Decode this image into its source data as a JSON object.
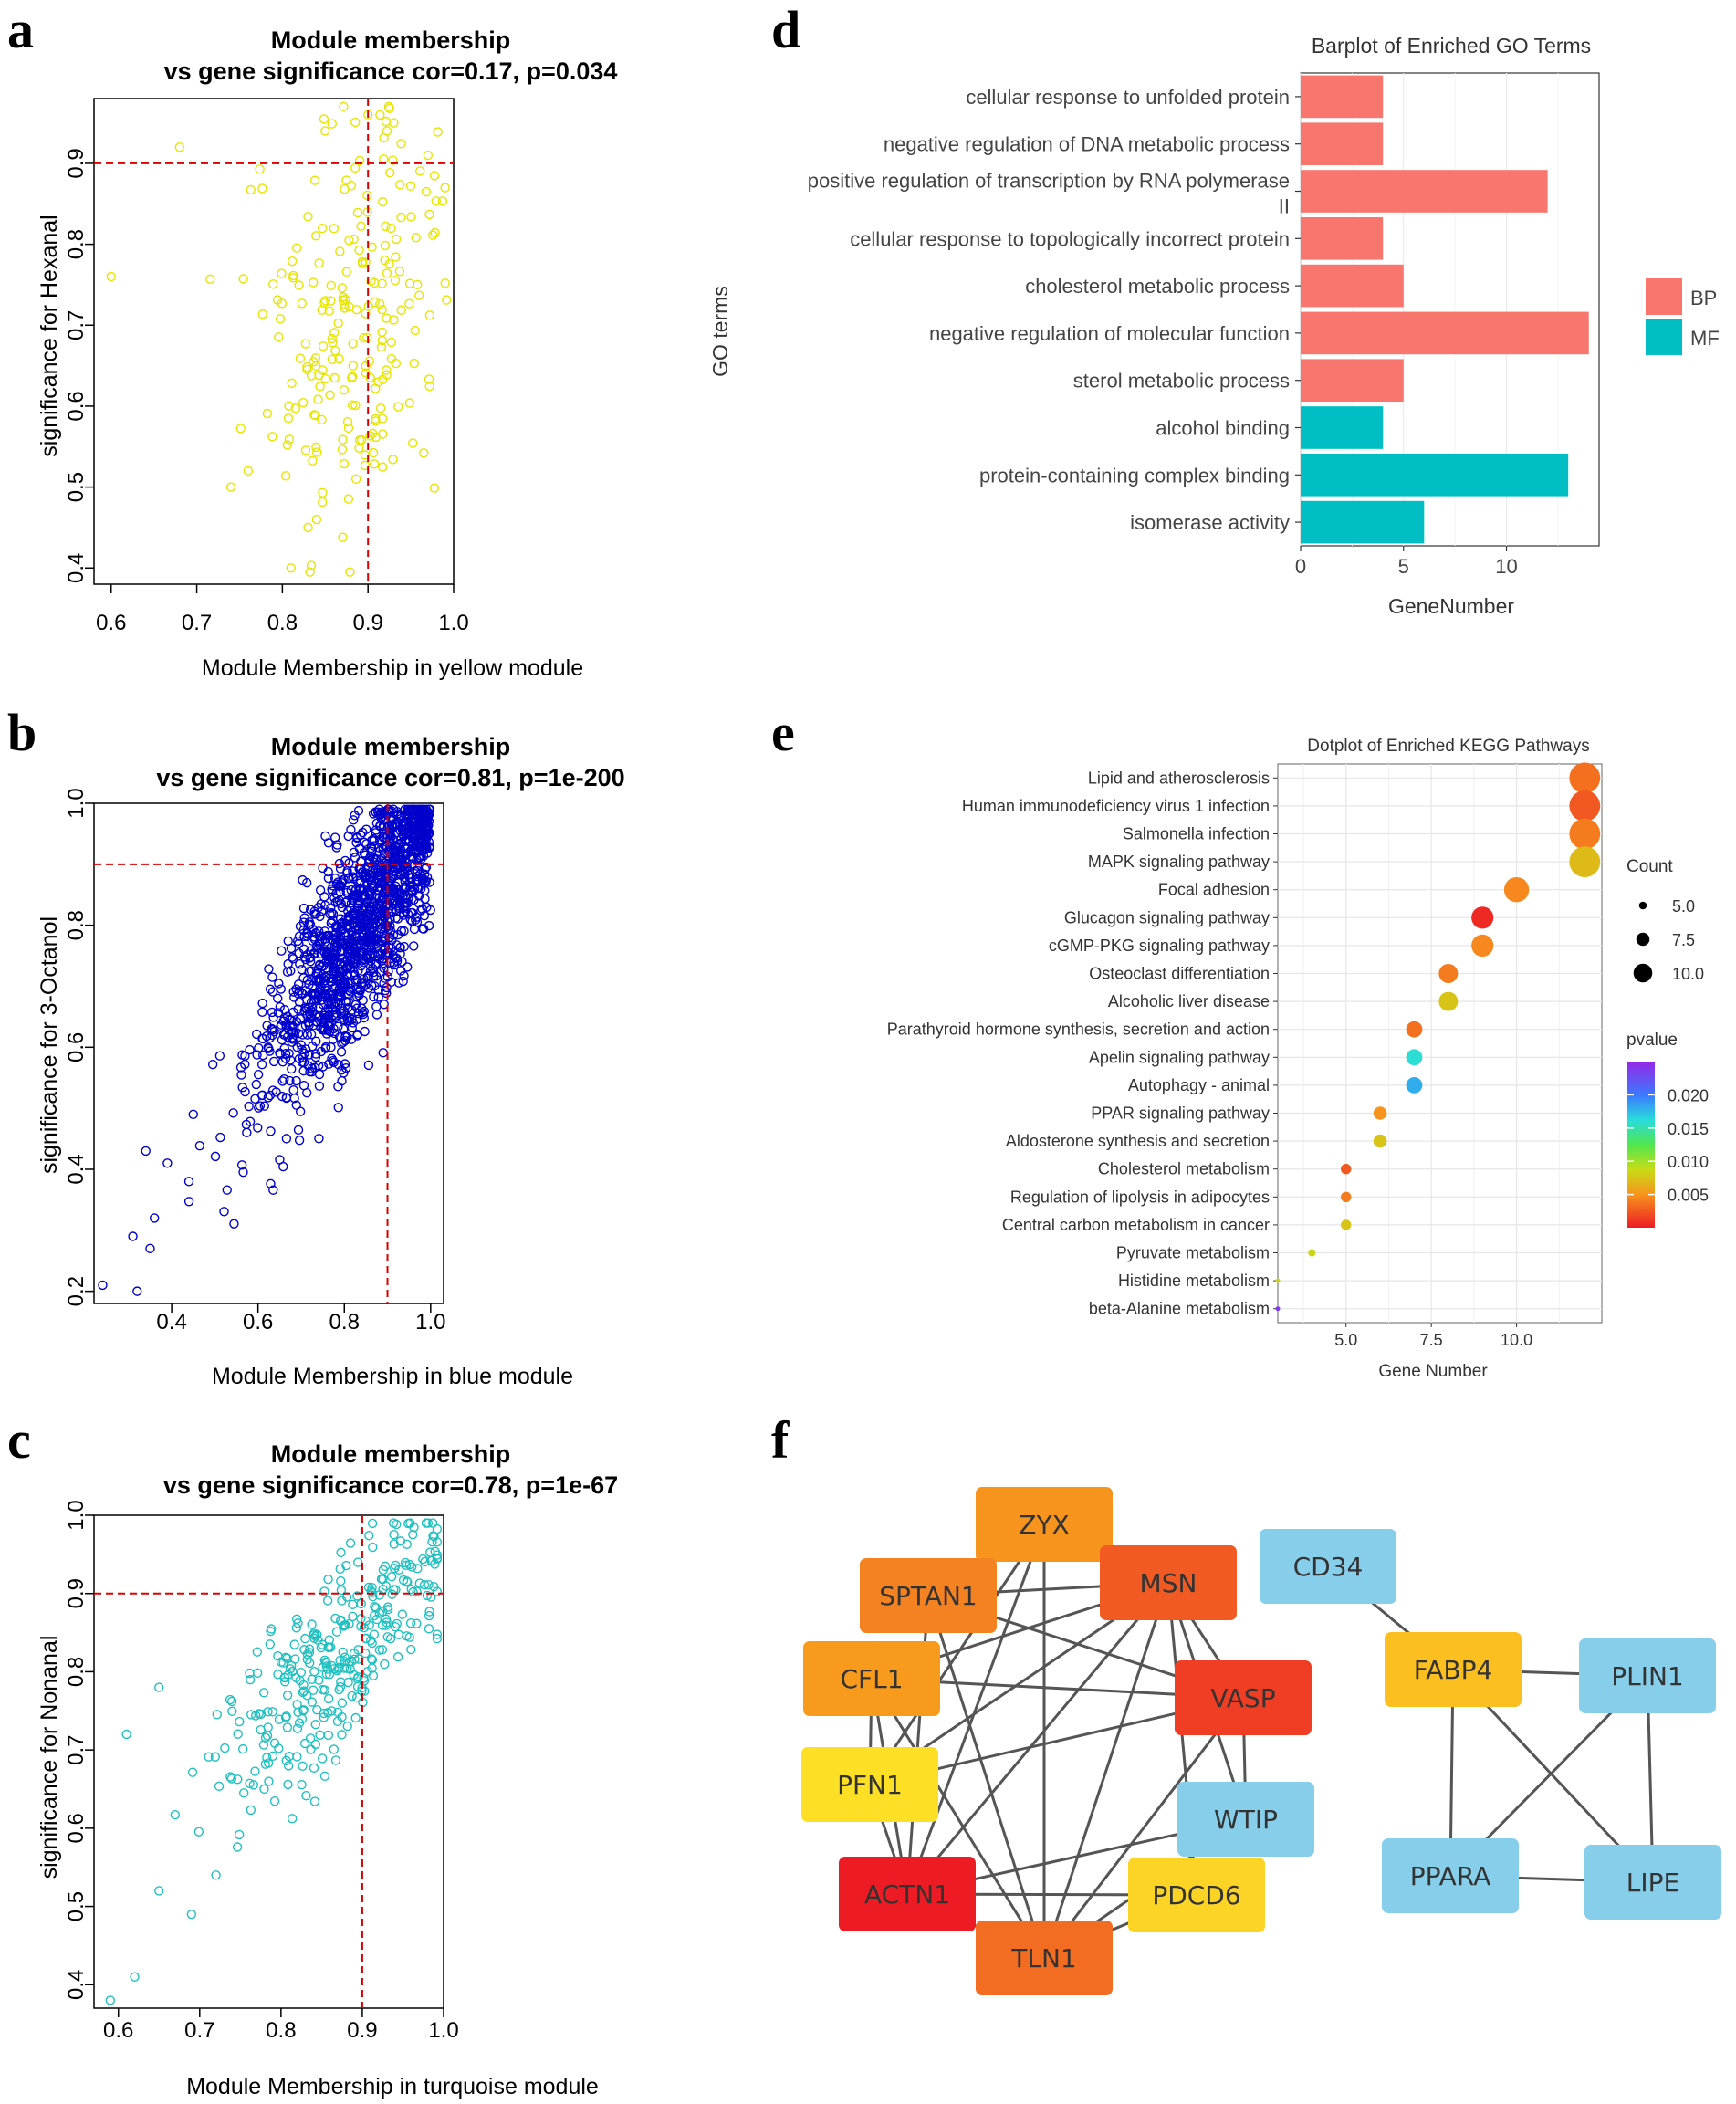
{
  "panel_labels": {
    "a": "a",
    "b": "b",
    "c": "c",
    "d": "d",
    "e": "e",
    "f": "f"
  },
  "chart_data": [
    {
      "id": "a",
      "type": "scatter",
      "title_line1": "Module membership",
      "title_line2": "vs gene significance cor=0.17, p=0.034",
      "xlabel": "Module Membership in yellow module",
      "ylabel": "significance for Hexanal",
      "xlim": [
        0.58,
        1.0
      ],
      "ylim": [
        0.38,
        0.98
      ],
      "xticks": [
        0.6,
        0.7,
        0.8,
        0.9,
        1.0
      ],
      "xtick_labels": [
        "0.6",
        "0.7",
        "0.8",
        "0.9",
        "1.0"
      ],
      "yticks": [
        0.4,
        0.5,
        0.6,
        0.7,
        0.8,
        0.9
      ],
      "ytick_labels": [
        "0.4",
        "0.5",
        "0.6",
        "0.7",
        "0.8",
        "0.9"
      ],
      "hline": 0.9,
      "vline": 0.9,
      "color": "#e6e600",
      "n_points": 230,
      "point_model": {
        "mean_x": 0.89,
        "sd_x": 0.055,
        "mean_y": 0.72,
        "sd_y": 0.13,
        "cor": 0.17
      },
      "points": [
        [
          0.6,
          0.76
        ],
        [
          0.68,
          0.92
        ],
        [
          0.74,
          0.5
        ],
        [
          0.76,
          0.52
        ],
        [
          0.81,
          0.4
        ],
        [
          0.83,
          0.45
        ],
        [
          0.84,
          0.46
        ],
        [
          0.85,
          0.94
        ],
        [
          0.9,
          0.96
        ],
        [
          0.93,
          0.95
        ],
        [
          0.97,
          0.91
        ],
        [
          0.99,
          0.87
        ]
      ]
    },
    {
      "id": "b",
      "type": "scatter",
      "title_line1": "Module membership",
      "title_line2": "vs gene significance cor=0.81, p=1e-200",
      "xlabel": "Module Membership in blue module",
      "ylabel": "significance for 3-Octanol",
      "xlim": [
        0.22,
        1.03
      ],
      "ylim": [
        0.18,
        1.0
      ],
      "xticks": [
        0.4,
        0.6,
        0.8,
        1.0
      ],
      "xtick_labels": [
        "0.4",
        "0.6",
        "0.8",
        "1.0"
      ],
      "yticks": [
        0.2,
        0.4,
        0.6,
        0.8,
        1.0
      ],
      "ytick_labels": [
        "0.2",
        "0.4",
        "0.6",
        "0.8",
        "1.0"
      ],
      "hline": 0.9,
      "vline": 0.9,
      "color": "#0000cc",
      "n_points": 1500,
      "point_model": {
        "mean_x": 0.84,
        "sd_x": 0.11,
        "mean_y": 0.8,
        "sd_y": 0.14,
        "cor": 0.81
      },
      "points": [
        [
          0.24,
          0.21
        ],
        [
          0.31,
          0.29
        ],
        [
          0.32,
          0.2
        ],
        [
          0.34,
          0.43
        ],
        [
          0.35,
          0.27
        ],
        [
          0.36,
          0.32
        ],
        [
          0.39,
          0.41
        ],
        [
          0.44,
          0.38
        ],
        [
          0.45,
          0.49
        ]
      ]
    },
    {
      "id": "c",
      "type": "scatter",
      "title_line1": "Module membership",
      "title_line2": "vs gene significance cor=0.78, p=1e-67",
      "xlabel": "Module Membership in turquoise module",
      "ylabel": "significance for Nonanal",
      "xlim": [
        0.57,
        1.0
      ],
      "ylim": [
        0.37,
        1.0
      ],
      "xticks": [
        0.6,
        0.7,
        0.8,
        0.9,
        1.0
      ],
      "xtick_labels": [
        "0.6",
        "0.7",
        "0.8",
        "0.9",
        "1.0"
      ],
      "yticks": [
        0.4,
        0.5,
        0.6,
        0.7,
        0.8,
        0.9,
        1.0
      ],
      "ytick_labels": [
        "0.4",
        "0.5",
        "0.6",
        "0.7",
        "0.8",
        "0.9",
        "1.0"
      ],
      "hline": 0.9,
      "vline": 0.9,
      "color": "#20c0c0",
      "n_points": 340,
      "point_model": {
        "mean_x": 0.87,
        "sd_x": 0.075,
        "mean_y": 0.82,
        "sd_y": 0.1,
        "cor": 0.78
      },
      "points": [
        [
          0.59,
          0.38
        ],
        [
          0.62,
          0.41
        ],
        [
          0.61,
          0.72
        ],
        [
          0.65,
          0.52
        ],
        [
          0.65,
          0.78
        ],
        [
          0.69,
          0.49
        ],
        [
          0.72,
          0.54
        ]
      ]
    },
    {
      "id": "d",
      "type": "bar",
      "title": "Barplot of Enriched GO Terms",
      "xlabel": "GeneNumber",
      "ylabel": "GO terms",
      "xlim": [
        0,
        14.5
      ],
      "xticks": [
        0,
        5,
        10
      ],
      "xtick_labels": [
        "0",
        "5",
        "10"
      ],
      "categories": [
        [
          "cellular response to unfolded protein"
        ],
        [
          "negative regulation of DNA metabolic process"
        ],
        [
          "positive regulation of transcription by RNA polymerase",
          "II"
        ],
        [
          "cellular response to topologically incorrect protein"
        ],
        [
          "cholesterol metabolic process"
        ],
        [
          "negative regulation of molecular function"
        ],
        [
          "sterol metabolic process"
        ],
        [
          "alcohol binding"
        ],
        [
          "protein-containing complex binding"
        ],
        [
          "isomerase activity"
        ]
      ],
      "values": [
        4,
        4,
        12,
        4,
        5,
        14,
        5,
        4,
        13,
        6
      ],
      "groups": [
        "BP",
        "BP",
        "BP",
        "BP",
        "BP",
        "BP",
        "BP",
        "MF",
        "MF",
        "MF"
      ],
      "legend": [
        {
          "name": "BP",
          "color": "#f8766d"
        },
        {
          "name": "MF",
          "color": "#00bfc4"
        }
      ]
    },
    {
      "id": "e",
      "type": "scatter",
      "title": "Dotplot of Enriched KEGG Pathways",
      "xlabel": "Gene Number",
      "xlim": [
        3,
        12.5
      ],
      "xticks": [
        5.0,
        7.5,
        10.0
      ],
      "xtick_labels": [
        "5.0",
        "7.5",
        "10.0"
      ],
      "categories": [
        "Lipid and atherosclerosis",
        "Human immunodeficiency virus 1 infection",
        "Salmonella infection",
        "MAPK signaling pathway",
        "Focal adhesion",
        "Glucagon signaling pathway",
        "cGMP-PKG signaling pathway",
        "Osteoclast differentiation",
        "Alcoholic liver disease",
        "Parathyroid hormone synthesis, secretion and action",
        "Apelin signaling pathway",
        "Autophagy - animal",
        "PPAR signaling pathway",
        "Aldosterone synthesis and secretion",
        "Cholesterol metabolism",
        "Regulation of lipolysis in adipocytes",
        "Central carbon metabolism in cancer",
        "Pyruvate metabolism",
        "Histidine metabolism",
        "beta-Alanine metabolism"
      ],
      "values": [
        12,
        12,
        12,
        12,
        10,
        9,
        9,
        8,
        8,
        7,
        7,
        7,
        6,
        6,
        5,
        5,
        5,
        4,
        3,
        3
      ],
      "pvalues": [
        0.0035,
        0.0025,
        0.004,
        0.007,
        0.0045,
        0.0005,
        0.0045,
        0.004,
        0.0075,
        0.0035,
        0.016,
        0.018,
        0.005,
        0.0075,
        0.0025,
        0.004,
        0.0075,
        0.0085,
        0.008,
        0.024
      ],
      "size_legend_title": "Count",
      "size_legend": [
        {
          "label": "5.0",
          "value": 5
        },
        {
          "label": "7.5",
          "value": 7.5
        },
        {
          "label": "10.0",
          "value": 10
        }
      ],
      "color_legend_title": "pvalue",
      "color_legend_ticks": [
        {
          "label": "0.020",
          "value": 0.02
        },
        {
          "label": "0.015",
          "value": 0.015
        },
        {
          "label": "0.010",
          "value": 0.01
        },
        {
          "label": "0.005",
          "value": 0.005
        }
      ],
      "color_range": [
        0.0,
        0.025
      ]
    }
  ],
  "network": {
    "nodes": [
      {
        "id": "ZYX",
        "color": "#f7941d"
      },
      {
        "id": "SPTAN1",
        "color": "#f58220"
      },
      {
        "id": "MSN",
        "color": "#f15a22"
      },
      {
        "id": "CD34",
        "color": "#87ceeb"
      },
      {
        "id": "CFL1",
        "color": "#f89b1c"
      },
      {
        "id": "VASP",
        "color": "#ef3e23"
      },
      {
        "id": "FABP4",
        "color": "#fbbf1f"
      },
      {
        "id": "PLIN1",
        "color": "#87ceeb"
      },
      {
        "id": "PFN1",
        "color": "#fde025"
      },
      {
        "id": "WTIP",
        "color": "#87ceeb"
      },
      {
        "id": "ACTN1",
        "color": "#ed1c24"
      },
      {
        "id": "PDCD6",
        "color": "#fcd425"
      },
      {
        "id": "PPARA",
        "color": "#87ceeb"
      },
      {
        "id": "LIPE",
        "color": "#87ceeb"
      },
      {
        "id": "TLN1",
        "color": "#f26d22"
      }
    ],
    "edges": [
      [
        "ZYX",
        "SPTAN1"
      ],
      [
        "ZYX",
        "MSN"
      ],
      [
        "ZYX",
        "ACTN1"
      ],
      [
        "ZYX",
        "TLN1"
      ],
      [
        "ZYX",
        "PFN1"
      ],
      [
        "SPTAN1",
        "MSN"
      ],
      [
        "SPTAN1",
        "VASP"
      ],
      [
        "SPTAN1",
        "ACTN1"
      ],
      [
        "SPTAN1",
        "TLN1"
      ],
      [
        "MSN",
        "VASP"
      ],
      [
        "MSN",
        "ACTN1"
      ],
      [
        "MSN",
        "TLN1"
      ],
      [
        "MSN",
        "CFL1"
      ],
      [
        "MSN",
        "PFN1"
      ],
      [
        "MSN",
        "PDCD6"
      ],
      [
        "MSN",
        "WTIP"
      ],
      [
        "CFL1",
        "VASP"
      ],
      [
        "CFL1",
        "ACTN1"
      ],
      [
        "CFL1",
        "TLN1"
      ],
      [
        "CFL1",
        "PFN1"
      ],
      [
        "PFN1",
        "VASP"
      ],
      [
        "PFN1",
        "ACTN1"
      ],
      [
        "ACTN1",
        "WTIP"
      ],
      [
        "ACTN1",
        "PDCD6"
      ],
      [
        "ACTN1",
        "TLN1"
      ],
      [
        "TLN1",
        "VASP"
      ],
      [
        "TLN1",
        "PDCD6"
      ],
      [
        "TLN1",
        "WTIP"
      ],
      [
        "VASP",
        "WTIP"
      ],
      [
        "CD34",
        "FABP4"
      ],
      [
        "FABP4",
        "PLIN1"
      ],
      [
        "FABP4",
        "PPARA"
      ],
      [
        "FABP4",
        "LIPE"
      ],
      [
        "PLIN1",
        "PPARA"
      ],
      [
        "PLIN1",
        "LIPE"
      ],
      [
        "PPARA",
        "LIPE"
      ]
    ]
  }
}
